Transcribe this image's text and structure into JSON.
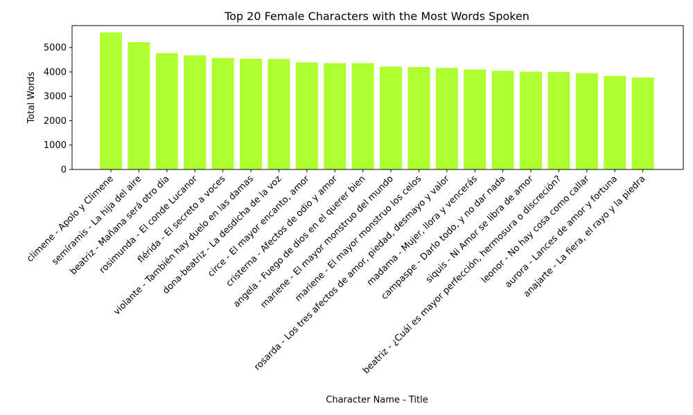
{
  "chart_data": {
    "type": "bar",
    "title": "Top 20 Female Characters with the Most Words Spoken",
    "xlabel": "Character Name - Title",
    "ylabel": "Total Words",
    "ylim": [
      0,
      5900
    ],
    "yticks": [
      0,
      1000,
      2000,
      3000,
      4000,
      5000
    ],
    "grid": false,
    "legend": "none",
    "bar_color": "#adff2f",
    "categories": [
      "climene - Apolo y Climene",
      "semíramis - La hija del aire",
      "beatriz -  Mañana será otro día",
      "rosimunda - El conde Lucanor",
      "flérida - El secreto a voces",
      "violante - También hay duelo en las damas",
      "dona-beatriz -  La desdicha de la voz",
      "circe - El mayor encanto, amor",
      "cristerna - Afectos de odio y amor",
      "angela -  Fuego de dios en el querer bien",
      "mariene - El mayor monstruo del mundo",
      "mariene - El mayor monstruo los celos",
      "rosarda - Los tres afectos de amor, piedad, desmayo y valor",
      "madama - Mujer, llora y vencerás",
      "campaspe - Darlo todo, y no dar nada",
      "siquis - Ni Amor se libra de amor",
      "beatriz - ¿Cuál es mayor perfección, hermosura o discreción?",
      "leonor - No hay cosa como callar",
      "aurora - Lances de amor y fortuna",
      "anajarte - La fiera, el rayo y la piedra"
    ],
    "values": [
      5620,
      5220,
      4770,
      4680,
      4570,
      4540,
      4530,
      4390,
      4360,
      4360,
      4220,
      4200,
      4160,
      4100,
      4040,
      4010,
      4000,
      3950,
      3830,
      3770
    ]
  }
}
